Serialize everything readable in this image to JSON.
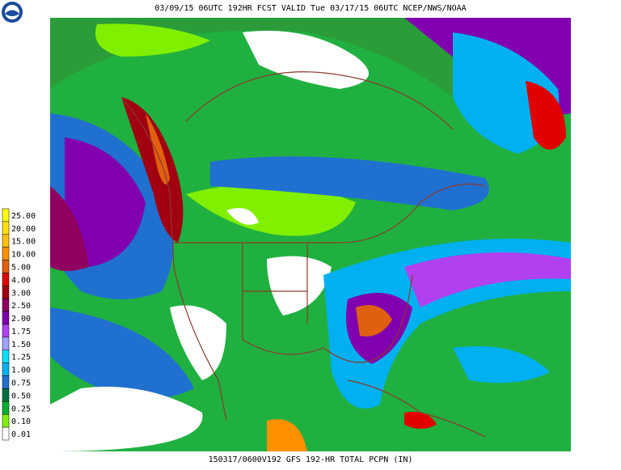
{
  "header": {
    "title": "03/09/15 06UTC  192HR  FCST VALID Tue 03/17/15 06UTC  NCEP/NWS/NOAA"
  },
  "footer": {
    "text": "150317/0600V192 GFS 192-HR TOTAL PCPN (IN)"
  },
  "legend": {
    "items": [
      {
        "label": "25.00",
        "color": "#ffff00"
      },
      {
        "label": "20.00",
        "color": "#ffe000"
      },
      {
        "label": "15.00",
        "color": "#ffc000"
      },
      {
        "label": "10.00",
        "color": "#ff9000"
      },
      {
        "label": "5.00",
        "color": "#e06010"
      },
      {
        "label": "4.00",
        "color": "#e00000"
      },
      {
        "label": "3.00",
        "color": "#a00010"
      },
      {
        "label": "2.50",
        "color": "#900060"
      },
      {
        "label": "2.00",
        "color": "#8000b0"
      },
      {
        "label": "1.75",
        "color": "#b040f0"
      },
      {
        "label": "1.50",
        "color": "#a0a0ff"
      },
      {
        "label": "1.25",
        "color": "#00e0ff"
      },
      {
        "label": "1.00",
        "color": "#00b0f0"
      },
      {
        "label": "0.75",
        "color": "#2070d0"
      },
      {
        "label": "0.50",
        "color": "#007040"
      },
      {
        "label": "0.25",
        "color": "#00b030"
      },
      {
        "label": "0.10",
        "color": "#80f000"
      },
      {
        "label": "0.01",
        "color": "#ffffff"
      }
    ]
  }
}
